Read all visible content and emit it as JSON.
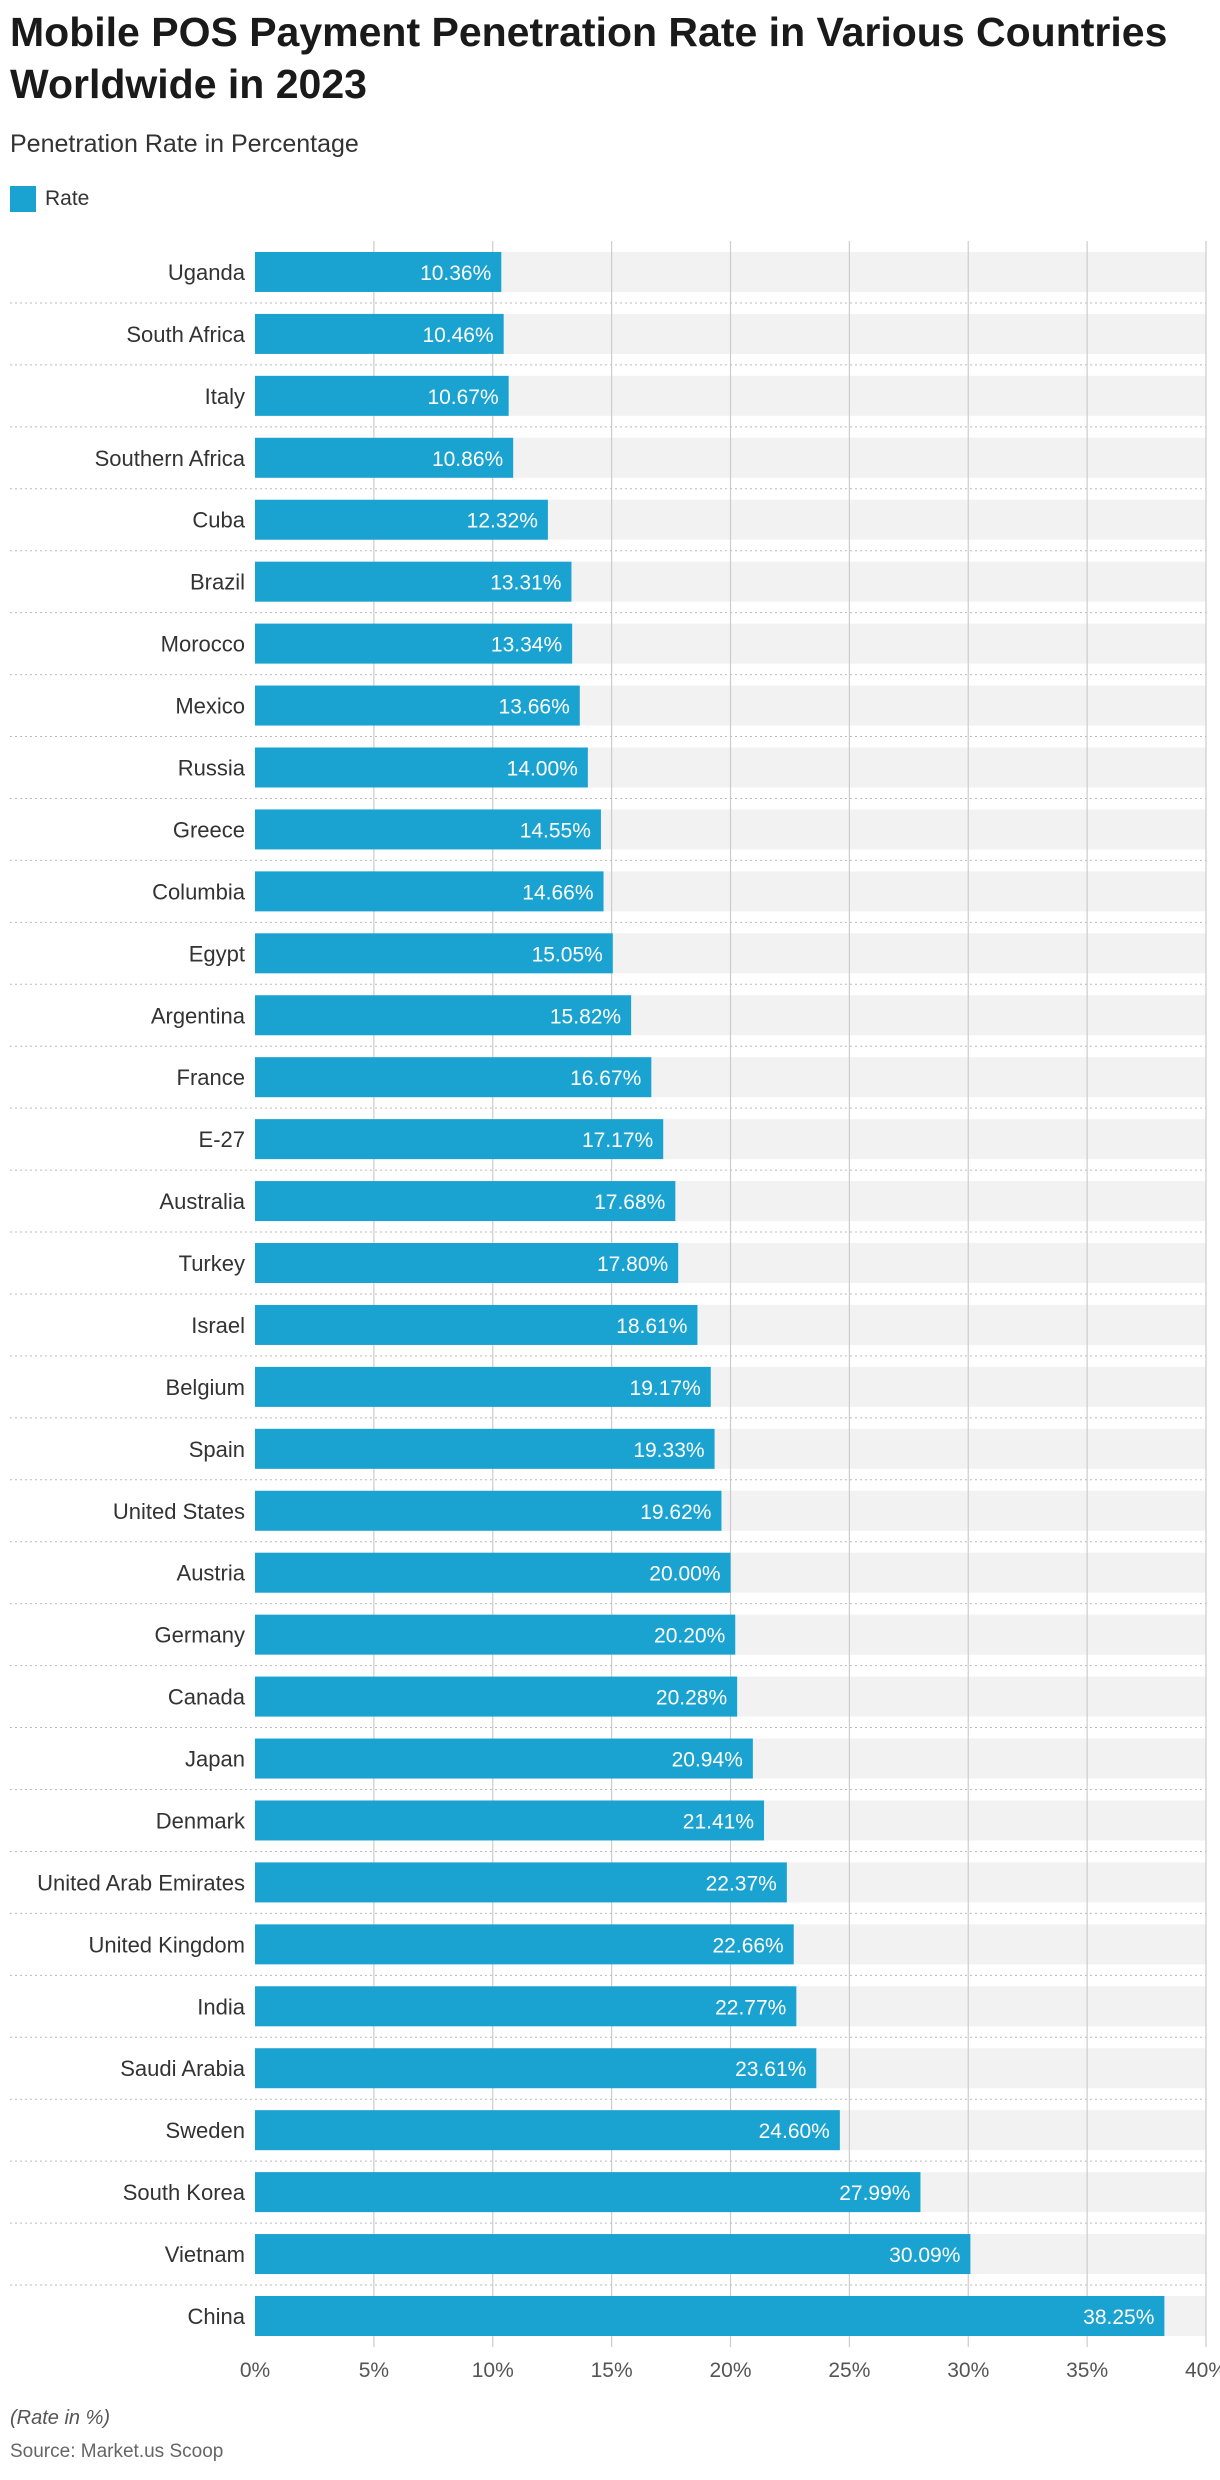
{
  "header": {
    "title": "Mobile POS Payment Penetration Rate in Various Countries Worldwide in 2023",
    "subtitle": "Penetration Rate in Percentage"
  },
  "legend": {
    "label": "Rate"
  },
  "footer": {
    "note": "(Rate in %)",
    "source": "Source: Market.us Scoop"
  },
  "colors": {
    "bar": "#1aa3d1",
    "band": "#f2f2f2",
    "grid": "#cccccc",
    "separator": "#bbbbbb"
  },
  "chart_data": {
    "type": "bar",
    "orientation": "horizontal",
    "categories": [
      "Uganda",
      "South Africa",
      "Italy",
      "Southern Africa",
      "Cuba",
      "Brazil",
      "Morocco",
      "Mexico",
      "Russia",
      "Greece",
      "Columbia",
      "Egypt",
      "Argentina",
      "France",
      "E-27",
      "Australia",
      "Turkey",
      "Israel",
      "Belgium",
      "Spain",
      "United States",
      "Austria",
      "Germany",
      "Canada",
      "Japan",
      "Denmark",
      "United Arab Emirates",
      "United Kingdom",
      "India",
      "Saudi Arabia",
      "Sweden",
      "South Korea",
      "Vietnam",
      "China"
    ],
    "series": [
      {
        "name": "Rate",
        "values": [
          10.36,
          10.46,
          10.67,
          10.86,
          12.32,
          13.31,
          13.34,
          13.66,
          14.0,
          14.55,
          14.66,
          15.05,
          15.82,
          16.67,
          17.17,
          17.68,
          17.8,
          18.61,
          19.17,
          19.33,
          19.62,
          20.0,
          20.2,
          20.28,
          20.94,
          21.41,
          22.37,
          22.66,
          22.77,
          23.61,
          24.6,
          27.99,
          30.09,
          38.25
        ],
        "labels": [
          "10.36%",
          "10.46%",
          "10.67%",
          "10.86%",
          "12.32%",
          "13.31%",
          "13.34%",
          "13.66%",
          "14.00%",
          "14.55%",
          "14.66%",
          "15.05%",
          "15.82%",
          "16.67%",
          "17.17%",
          "17.68%",
          "17.80%",
          "18.61%",
          "19.17%",
          "19.33%",
          "19.62%",
          "20.00%",
          "20.20%",
          "20.28%",
          "20.94%",
          "21.41%",
          "22.37%",
          "22.66%",
          "22.77%",
          "23.61%",
          "24.60%",
          "27.99%",
          "30.09%",
          "38.25%"
        ]
      }
    ],
    "xlim": [
      0,
      40
    ],
    "xticks": [
      0,
      5,
      10,
      15,
      20,
      25,
      30,
      35,
      40
    ],
    "xtick_labels": [
      "0%",
      "5%",
      "10%",
      "15%",
      "20%",
      "25%",
      "30%",
      "35%",
      "40%"
    ],
    "grid": true,
    "legend_position": "top-left"
  }
}
